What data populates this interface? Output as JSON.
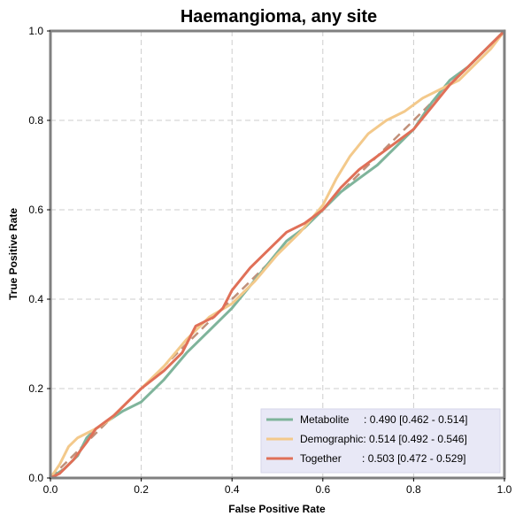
{
  "chart_data": {
    "type": "line",
    "title": "Haemangioma, any site",
    "xlabel": "False Positive Rate",
    "ylabel": "True Positive Rate",
    "xlim": [
      0,
      1
    ],
    "ylim": [
      0,
      1
    ],
    "xticks": [
      "0.0",
      "0.2",
      "0.4",
      "0.6",
      "0.8",
      "1.0"
    ],
    "yticks": [
      "0.0",
      "0.2",
      "0.4",
      "0.6",
      "0.8",
      "1.0"
    ],
    "grid": true,
    "legend_position": "bottom-right",
    "diagonal": {
      "x": [
        0,
        1
      ],
      "y": [
        0,
        1
      ],
      "color": "#c0907a",
      "style": "dashed"
    },
    "series": [
      {
        "name": "Metabolite",
        "legend_label": "Metabolite     : 0.490 [0.462 - 0.514]",
        "color": "#7fb49b",
        "x": [
          0,
          0.03,
          0.06,
          0.08,
          0.1,
          0.13,
          0.16,
          0.2,
          0.25,
          0.3,
          0.35,
          0.4,
          0.44,
          0.48,
          0.52,
          0.56,
          0.6,
          0.64,
          0.68,
          0.72,
          0.76,
          0.8,
          0.84,
          0.88,
          0.92,
          0.96,
          1.0
        ],
        "y": [
          0,
          0.02,
          0.05,
          0.09,
          0.11,
          0.13,
          0.15,
          0.17,
          0.22,
          0.28,
          0.33,
          0.38,
          0.43,
          0.48,
          0.53,
          0.56,
          0.6,
          0.64,
          0.67,
          0.7,
          0.74,
          0.78,
          0.84,
          0.89,
          0.92,
          0.96,
          1.0
        ]
      },
      {
        "name": "Demographic",
        "legend_label": "Demographic: 0.514 [0.492 - 0.546]",
        "color": "#f3c98b",
        "x": [
          0,
          0.02,
          0.04,
          0.06,
          0.08,
          0.1,
          0.13,
          0.16,
          0.2,
          0.25,
          0.3,
          0.35,
          0.4,
          0.45,
          0.5,
          0.55,
          0.6,
          0.63,
          0.66,
          0.7,
          0.74,
          0.78,
          0.82,
          0.86,
          0.9,
          0.94,
          0.97,
          1.0
        ],
        "y": [
          0,
          0.03,
          0.07,
          0.09,
          0.1,
          0.11,
          0.13,
          0.16,
          0.2,
          0.25,
          0.31,
          0.36,
          0.39,
          0.44,
          0.5,
          0.55,
          0.61,
          0.67,
          0.72,
          0.77,
          0.8,
          0.82,
          0.85,
          0.87,
          0.89,
          0.93,
          0.96,
          1.0
        ]
      },
      {
        "name": "Together",
        "legend_label": "Together       : 0.503 [0.472 - 0.529]",
        "color": "#e07058",
        "x": [
          0,
          0.02,
          0.05,
          0.08,
          0.1,
          0.14,
          0.17,
          0.2,
          0.25,
          0.29,
          0.32,
          0.36,
          0.38,
          0.4,
          0.44,
          0.48,
          0.52,
          0.56,
          0.6,
          0.64,
          0.68,
          0.72,
          0.76,
          0.8,
          0.84,
          0.88,
          0.92,
          0.96,
          1.0
        ],
        "y": [
          0,
          0.01,
          0.04,
          0.08,
          0.11,
          0.14,
          0.17,
          0.2,
          0.24,
          0.28,
          0.34,
          0.36,
          0.38,
          0.42,
          0.47,
          0.51,
          0.55,
          0.57,
          0.6,
          0.65,
          0.69,
          0.72,
          0.75,
          0.78,
          0.83,
          0.88,
          0.92,
          0.96,
          1.0
        ]
      }
    ]
  }
}
